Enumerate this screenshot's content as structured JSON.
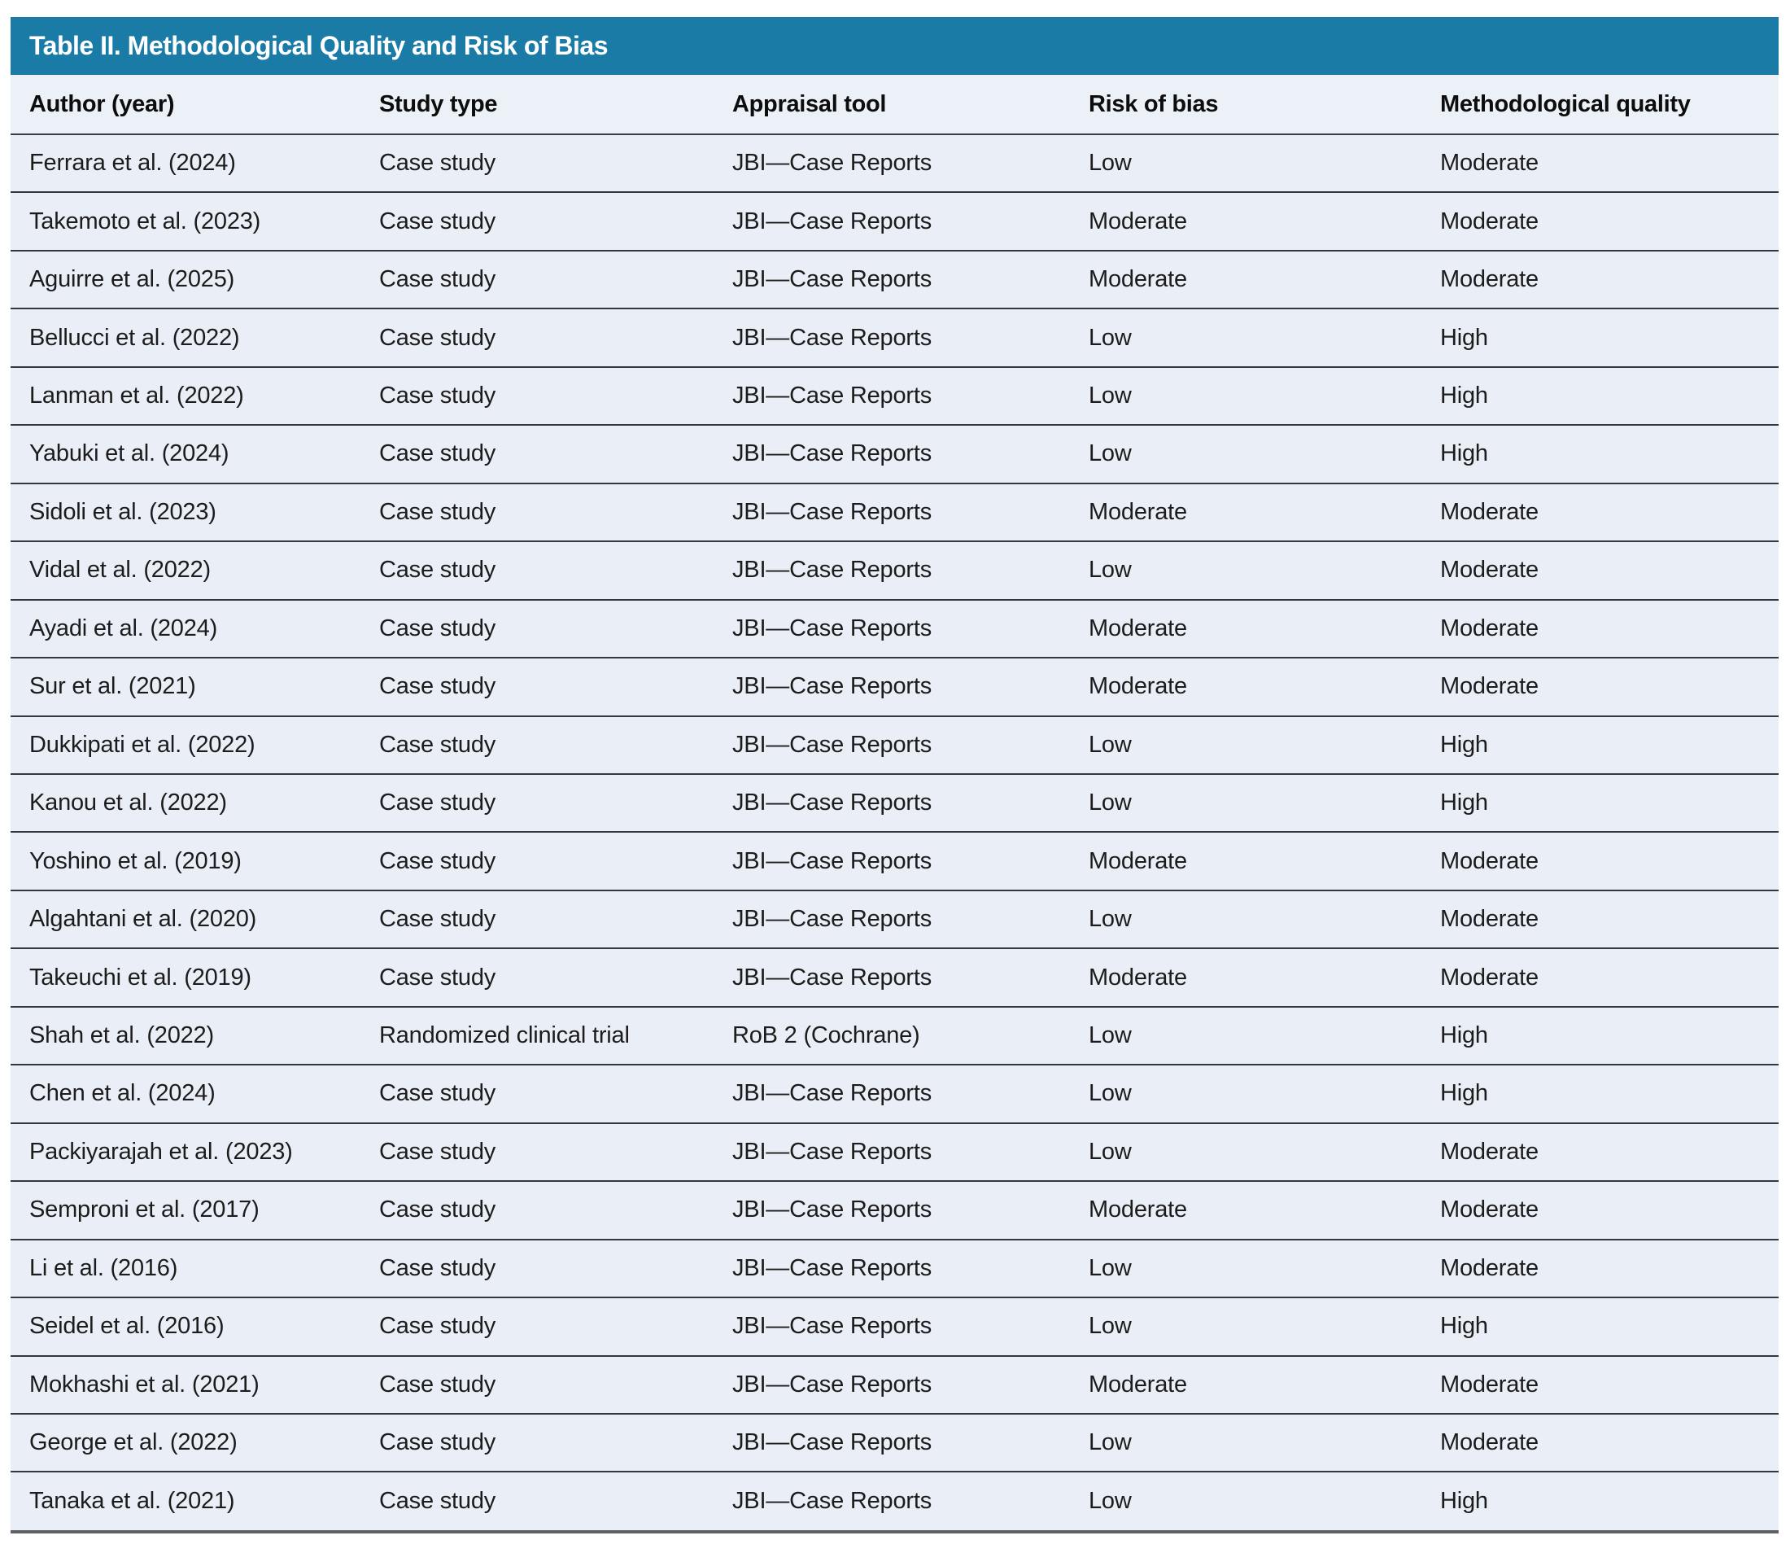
{
  "table": {
    "title": "Table II. Methodological Quality and Risk of Bias",
    "columns": [
      "Author (year)",
      "Study type",
      "Appraisal tool",
      "Risk of bias",
      "Methodological quality"
    ],
    "column_keys": [
      "author",
      "study-type",
      "appraisal-tool",
      "risk-of-bias",
      "methodological-quality"
    ],
    "rows": [
      [
        "Ferrara et al. (2024)",
        "Case study",
        "JBI—Case Reports",
        "Low",
        "Moderate"
      ],
      [
        "Takemoto et al. (2023)",
        "Case study",
        "JBI—Case Reports",
        "Moderate",
        "Moderate"
      ],
      [
        "Aguirre et al. (2025)",
        "Case study",
        "JBI—Case Reports",
        "Moderate",
        "Moderate"
      ],
      [
        "Bellucci et al. (2022)",
        "Case study",
        "JBI—Case Reports",
        "Low",
        "High"
      ],
      [
        "Lanman et al. (2022)",
        "Case study",
        "JBI—Case Reports",
        "Low",
        "High"
      ],
      [
        "Yabuki et al. (2024)",
        "Case study",
        "JBI—Case Reports",
        "Low",
        "High"
      ],
      [
        "Sidoli et al. (2023)",
        "Case study",
        "JBI—Case Reports",
        "Moderate",
        "Moderate"
      ],
      [
        "Vidal et al. (2022)",
        "Case study",
        "JBI—Case Reports",
        "Low",
        "Moderate"
      ],
      [
        "Ayadi et al. (2024)",
        "Case study",
        "JBI—Case Reports",
        "Moderate",
        "Moderate"
      ],
      [
        "Sur et al. (2021)",
        "Case study",
        "JBI—Case Reports",
        "Moderate",
        "Moderate"
      ],
      [
        "Dukkipati et al. (2022)",
        "Case study",
        "JBI—Case Reports",
        "Low",
        "High"
      ],
      [
        "Kanou et al. (2022)",
        "Case study",
        "JBI—Case Reports",
        "Low",
        "High"
      ],
      [
        "Yoshino et al. (2019)",
        "Case study",
        "JBI—Case Reports",
        "Moderate",
        "Moderate"
      ],
      [
        "Algahtani et al. (2020)",
        "Case study",
        "JBI—Case Reports",
        "Low",
        "Moderate"
      ],
      [
        "Takeuchi et al. (2019)",
        "Case study",
        "JBI—Case Reports",
        "Moderate",
        "Moderate"
      ],
      [
        "Shah et al. (2022)",
        "Randomized clinical trial",
        "RoB 2 (Cochrane)",
        "Low",
        "High"
      ],
      [
        "Chen et al. (2024)",
        "Case study",
        "JBI—Case Reports",
        "Low",
        "High"
      ],
      [
        "Packiyarajah et al. (2023)",
        "Case study",
        "JBI—Case Reports",
        "Low",
        "Moderate"
      ],
      [
        "Semproni et al. (2017)",
        "Case study",
        "JBI—Case Reports",
        "Moderate",
        "Moderate"
      ],
      [
        "Li et al. (2016)",
        "Case study",
        "JBI—Case Reports",
        "Low",
        "Moderate"
      ],
      [
        "Seidel et al. (2016)",
        "Case study",
        "JBI—Case Reports",
        "Low",
        "High"
      ],
      [
        "Mokhashi et al. (2021)",
        "Case study",
        "JBI—Case Reports",
        "Moderate",
        "Moderate"
      ],
      [
        "George et al. (2022)",
        "Case study",
        "JBI—Case Reports",
        "Low",
        "Moderate"
      ],
      [
        "Tanaka et al. (2021)",
        "Case study",
        "JBI—Case Reports",
        "Low",
        "High"
      ]
    ]
  },
  "colors": {
    "title_bar_background": "#1b7ba7",
    "title_text": "#ffffff",
    "row_background": "#eaeef6",
    "divider_line": "#34383c",
    "body_text": "#1c1c1c"
  }
}
